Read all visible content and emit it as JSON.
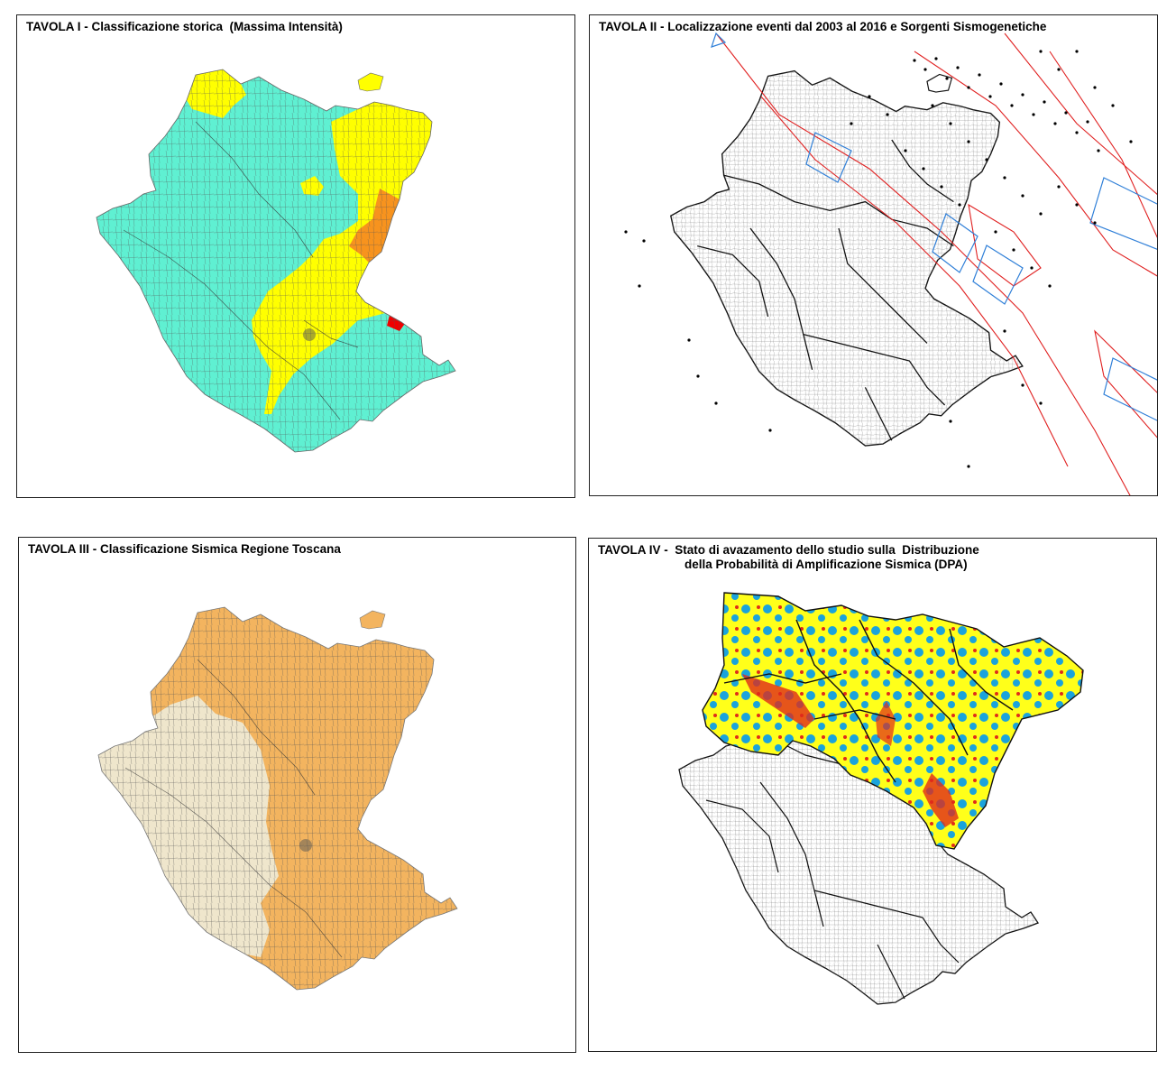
{
  "panels": [
    {
      "title": "TAVOLA I - Classificazione storica  (Massima Intensità)",
      "zone_colors": {
        "cyan": "#5ff0d2",
        "yellow": "#ffff00",
        "orange": "#f7931e",
        "red": "#f00000"
      }
    },
    {
      "title": "TAVOLA II - Localizzazione eventi dal 2003 al 2016 e Sorgenti Sismogenetiche",
      "zone_colors": {
        "fault_line": "#e02020",
        "source_box": "#2f7fd8",
        "event_dot": "#000000"
      }
    },
    {
      "title": "TAVOLA III - Classificazione Sismica Regione Toscana",
      "zone_colors": {
        "zone_a": "#f3b45f",
        "zone_b": "#efe6cc"
      }
    },
    {
      "title": "TAVOLA IV -  Stato di avazamento dello studio sulla  Distribuzione",
      "title_line2": "della Probabilità di Amplificazione Sismica (DPA)",
      "zone_colors": {
        "blue": "#1aa3dc",
        "yellow": "#ffff1a",
        "red": "#e02b1a"
      }
    }
  ]
}
